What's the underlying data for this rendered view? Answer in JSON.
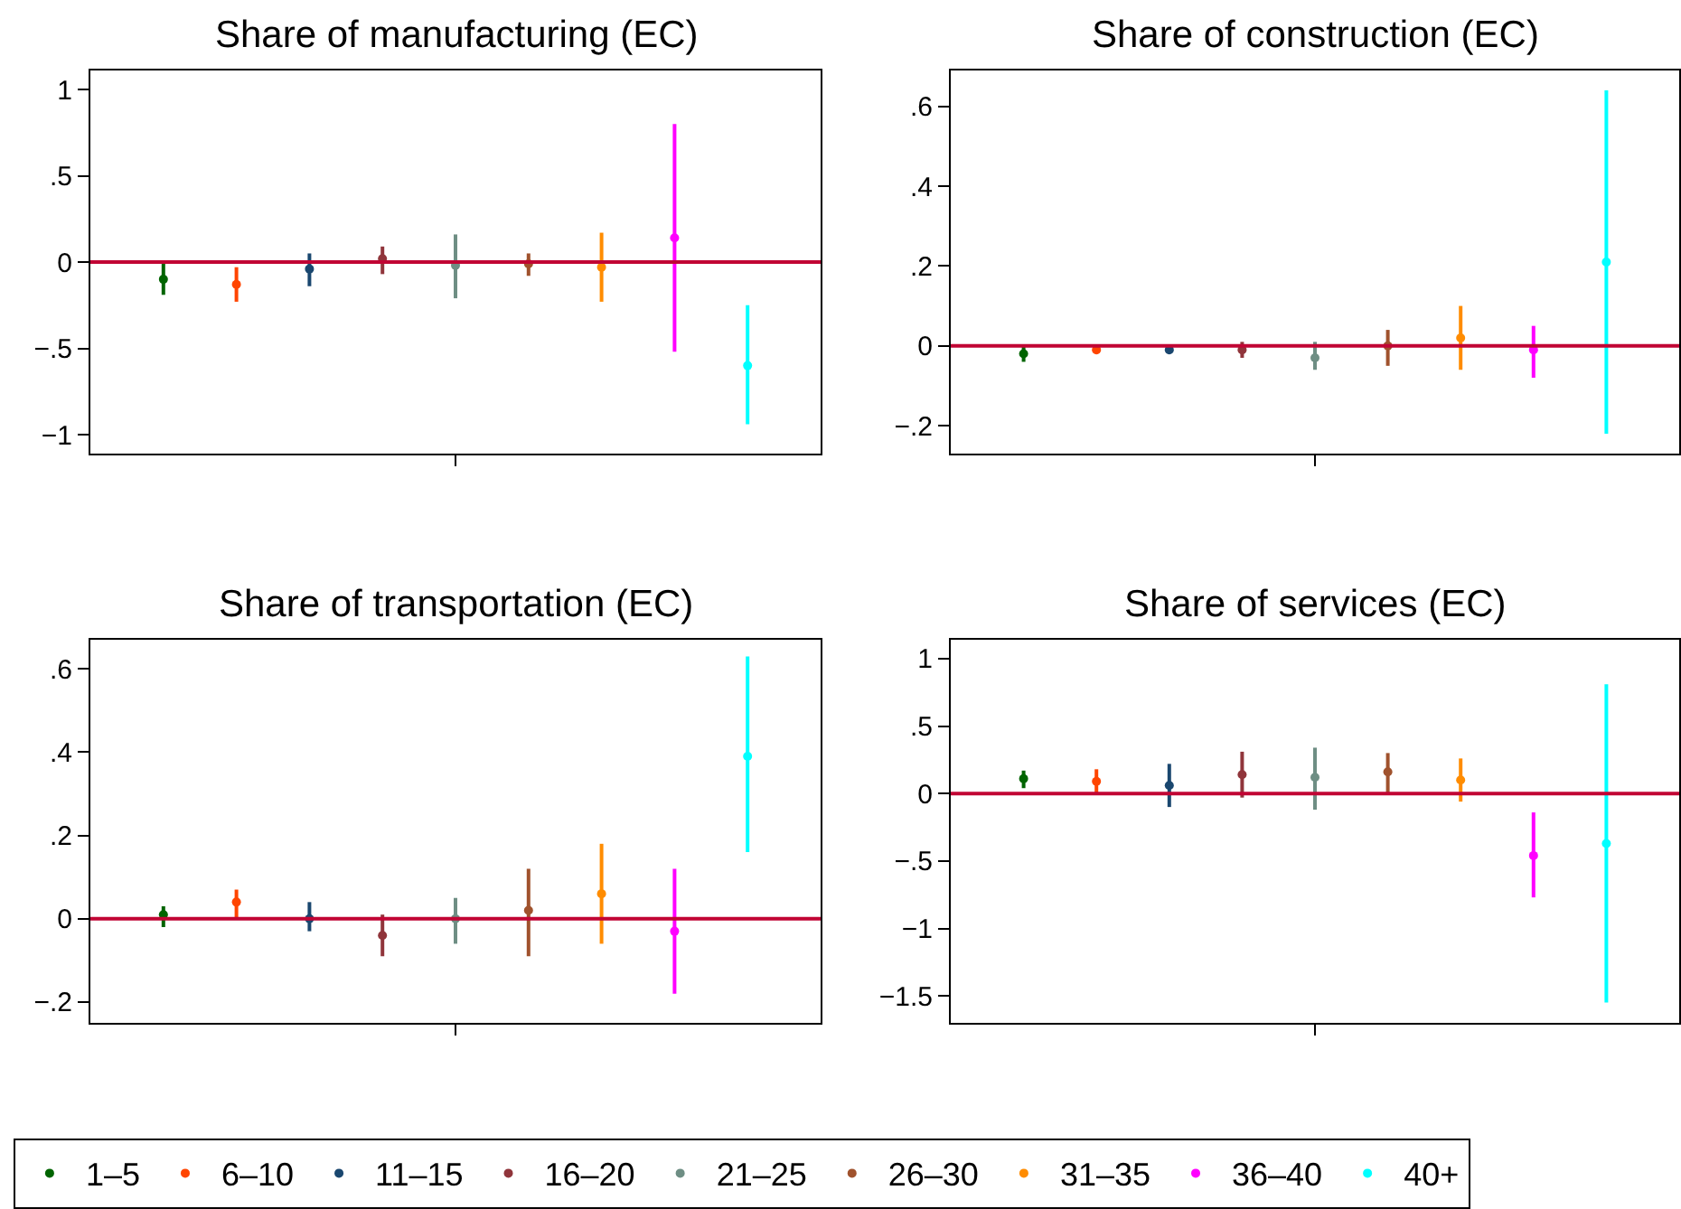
{
  "chart_data": [
    {
      "type": "scatter",
      "title": "Share of manufacturing (EC)",
      "marker": "circle",
      "legend": "bottom",
      "categories": [
        null,
        null,
        null,
        null,
        null,
        null,
        null,
        null,
        null
      ],
      "ylim": [
        -1.11,
        1.11
      ],
      "yticks": [
        {
          "value": -1,
          "label": "−1"
        },
        {
          "value": -0.5,
          "label": "−.5"
        },
        0,
        {
          "value": 0.5,
          "label": ".5"
        },
        1
      ],
      "ref_lines": [
        {
          "axis": "y",
          "value": 0,
          "color": "#c10534"
        }
      ],
      "series": [
        {
          "name": "1–5",
          "color": "#006400",
          "values": [
            -0.1,
            null,
            null,
            null,
            null,
            null,
            null,
            null,
            null
          ],
          "errors": [
            [
              -0.19,
              0.0
            ],
            null,
            null,
            null,
            null,
            null,
            null,
            null,
            null
          ]
        },
        {
          "name": "6–10",
          "color": "#ff4500",
          "values": [
            null,
            -0.13,
            null,
            null,
            null,
            null,
            null,
            null,
            null
          ],
          "errors": [
            null,
            [
              -0.23,
              -0.03
            ],
            null,
            null,
            null,
            null,
            null,
            null,
            null
          ]
        },
        {
          "name": "11–15",
          "color": "#1a476f",
          "values": [
            null,
            null,
            -0.04,
            null,
            null,
            null,
            null,
            null,
            null
          ],
          "errors": [
            null,
            null,
            [
              -0.14,
              0.05
            ],
            null,
            null,
            null,
            null,
            null,
            null
          ]
        },
        {
          "name": "16–20",
          "color": "#90353b",
          "values": [
            null,
            null,
            null,
            0.02,
            null,
            null,
            null,
            null,
            null
          ],
          "errors": [
            null,
            null,
            null,
            [
              -0.07,
              0.09
            ],
            null,
            null,
            null,
            null,
            null
          ]
        },
        {
          "name": "21–25",
          "color": "#6e8e84",
          "values": [
            null,
            null,
            null,
            null,
            -0.02,
            null,
            null,
            null,
            null
          ],
          "errors": [
            null,
            null,
            null,
            null,
            [
              -0.21,
              0.16
            ],
            null,
            null,
            null,
            null
          ]
        },
        {
          "name": "26–30",
          "color": "#a0522d",
          "values": [
            null,
            null,
            null,
            null,
            null,
            -0.01,
            null,
            null,
            null
          ],
          "errors": [
            null,
            null,
            null,
            null,
            null,
            [
              -0.08,
              0.05
            ],
            null,
            null,
            null
          ]
        },
        {
          "name": "31–35",
          "color": "#ff8c00",
          "values": [
            null,
            null,
            null,
            null,
            null,
            null,
            -0.03,
            null,
            null
          ],
          "errors": [
            null,
            null,
            null,
            null,
            null,
            null,
            [
              -0.23,
              0.17
            ],
            null,
            null
          ]
        },
        {
          "name": "36–40",
          "color": "#ff00ff",
          "values": [
            null,
            null,
            null,
            null,
            null,
            null,
            null,
            0.14,
            null
          ],
          "errors": [
            null,
            null,
            null,
            null,
            null,
            null,
            null,
            [
              -0.52,
              0.8
            ],
            null
          ]
        },
        {
          "name": "40+",
          "color": "#00ffff",
          "values": [
            null,
            null,
            null,
            null,
            null,
            null,
            null,
            null,
            -0.6
          ],
          "errors": [
            null,
            null,
            null,
            null,
            null,
            null,
            null,
            null,
            [
              -0.94,
              -0.25
            ]
          ]
        }
      ]
    },
    {
      "type": "scatter",
      "title": "Share of construction (EC)",
      "marker": "circle",
      "categories": [
        null,
        null,
        null,
        null,
        null,
        null,
        null,
        null,
        null
      ],
      "ylim": [
        -0.27,
        0.69
      ],
      "yticks": [
        {
          "value": -0.2,
          "label": "−.2"
        },
        0,
        {
          "value": 0.2,
          "label": ".2"
        },
        {
          "value": 0.4,
          "label": ".4"
        },
        {
          "value": 0.6,
          "label": ".6"
        }
      ],
      "ref_lines": [
        {
          "axis": "y",
          "value": 0,
          "color": "#c10534"
        }
      ],
      "series": [
        {
          "color": "#006400",
          "values": [
            -0.02,
            null,
            null,
            null,
            null,
            null,
            null,
            null,
            null
          ],
          "errors": [
            [
              -0.04,
              0.0
            ],
            null,
            null,
            null,
            null,
            null,
            null,
            null,
            null
          ]
        },
        {
          "color": "#ff4500",
          "values": [
            null,
            -0.01,
            null,
            null,
            null,
            null,
            null,
            null,
            null
          ]
        },
        {
          "color": "#1a476f",
          "values": [
            null,
            null,
            -0.01,
            null,
            null,
            null,
            null,
            null,
            null
          ]
        },
        {
          "color": "#90353b",
          "values": [
            null,
            null,
            null,
            -0.01,
            null,
            null,
            null,
            null,
            null
          ],
          "errors": [
            null,
            null,
            null,
            [
              -0.03,
              0.01
            ],
            null,
            null,
            null,
            null,
            null
          ]
        },
        {
          "color": "#6e8e84",
          "values": [
            null,
            null,
            null,
            null,
            -0.03,
            null,
            null,
            null,
            null
          ],
          "errors": [
            null,
            null,
            null,
            null,
            [
              -0.06,
              0.01
            ],
            null,
            null,
            null,
            null
          ]
        },
        {
          "color": "#a0522d",
          "values": [
            null,
            null,
            null,
            null,
            null,
            0.0,
            null,
            null,
            null
          ],
          "errors": [
            null,
            null,
            null,
            null,
            null,
            [
              -0.05,
              0.04
            ],
            null,
            null,
            null
          ]
        },
        {
          "color": "#ff8c00",
          "values": [
            null,
            null,
            null,
            null,
            null,
            null,
            0.02,
            null,
            null
          ],
          "errors": [
            null,
            null,
            null,
            null,
            null,
            null,
            [
              -0.06,
              0.1
            ],
            null,
            null
          ]
        },
        {
          "color": "#ff00ff",
          "values": [
            null,
            null,
            null,
            null,
            null,
            null,
            null,
            -0.01,
            null
          ],
          "errors": [
            null,
            null,
            null,
            null,
            null,
            null,
            null,
            [
              -0.08,
              0.05
            ],
            null
          ]
        },
        {
          "color": "#00ffff",
          "values": [
            null,
            null,
            null,
            null,
            null,
            null,
            null,
            null,
            0.21
          ],
          "errors": [
            null,
            null,
            null,
            null,
            null,
            null,
            null,
            null,
            [
              -0.22,
              0.64
            ]
          ]
        }
      ]
    },
    {
      "type": "scatter",
      "title": "Share of transportation (EC)",
      "marker": "circle",
      "categories": [
        null,
        null,
        null,
        null,
        null,
        null,
        null,
        null,
        null
      ],
      "ylim": [
        -0.25,
        0.67
      ],
      "yticks": [
        {
          "value": -0.2,
          "label": "−.2"
        },
        0,
        {
          "value": 0.2,
          "label": ".2"
        },
        {
          "value": 0.4,
          "label": ".4"
        },
        {
          "value": 0.6,
          "label": ".6"
        }
      ],
      "ref_lines": [
        {
          "axis": "y",
          "value": 0,
          "color": "#c10534"
        }
      ],
      "series": [
        {
          "color": "#006400",
          "values": [
            0.01,
            null,
            null,
            null,
            null,
            null,
            null,
            null,
            null
          ],
          "errors": [
            [
              -0.02,
              0.03
            ],
            null,
            null,
            null,
            null,
            null,
            null,
            null,
            null
          ]
        },
        {
          "color": "#ff4500",
          "values": [
            null,
            0.04,
            null,
            null,
            null,
            null,
            null,
            null,
            null
          ],
          "errors": [
            null,
            [
              0.0,
              0.07
            ],
            null,
            null,
            null,
            null,
            null,
            null,
            null
          ]
        },
        {
          "color": "#1a476f",
          "values": [
            null,
            null,
            0.0,
            null,
            null,
            null,
            null,
            null,
            null
          ],
          "errors": [
            null,
            null,
            [
              -0.03,
              0.04
            ],
            null,
            null,
            null,
            null,
            null,
            null
          ]
        },
        {
          "color": "#90353b",
          "values": [
            null,
            null,
            null,
            -0.04,
            null,
            null,
            null,
            null,
            null
          ],
          "errors": [
            null,
            null,
            null,
            [
              -0.09,
              0.01
            ],
            null,
            null,
            null,
            null,
            null
          ]
        },
        {
          "color": "#6e8e84",
          "values": [
            null,
            null,
            null,
            null,
            0.0,
            null,
            null,
            null,
            null
          ],
          "errors": [
            null,
            null,
            null,
            null,
            [
              -0.06,
              0.05
            ],
            null,
            null,
            null,
            null
          ]
        },
        {
          "color": "#a0522d",
          "values": [
            null,
            null,
            null,
            null,
            null,
            0.02,
            null,
            null,
            null
          ],
          "errors": [
            null,
            null,
            null,
            null,
            null,
            [
              -0.09,
              0.12
            ],
            null,
            null,
            null
          ]
        },
        {
          "color": "#ff8c00",
          "values": [
            null,
            null,
            null,
            null,
            null,
            null,
            0.06,
            null,
            null
          ],
          "errors": [
            null,
            null,
            null,
            null,
            null,
            null,
            [
              -0.06,
              0.18
            ],
            null,
            null
          ]
        },
        {
          "color": "#ff00ff",
          "values": [
            null,
            null,
            null,
            null,
            null,
            null,
            null,
            -0.03,
            null
          ],
          "errors": [
            null,
            null,
            null,
            null,
            null,
            null,
            null,
            [
              -0.18,
              0.12
            ],
            null
          ]
        },
        {
          "color": "#00ffff",
          "values": [
            null,
            null,
            null,
            null,
            null,
            null,
            null,
            null,
            0.39
          ],
          "errors": [
            null,
            null,
            null,
            null,
            null,
            null,
            null,
            null,
            [
              0.16,
              0.63
            ]
          ]
        }
      ]
    },
    {
      "type": "scatter",
      "title": "Share of services (EC)",
      "marker": "circle",
      "categories": [
        null,
        null,
        null,
        null,
        null,
        null,
        null,
        null,
        null
      ],
      "ylim": [
        -1.7,
        1.14
      ],
      "yticks": [
        {
          "value": -1.5,
          "label": "−1.5"
        },
        {
          "value": -1,
          "label": "−1"
        },
        {
          "value": -0.5,
          "label": "−.5"
        },
        0,
        {
          "value": 0.5,
          "label": ".5"
        },
        1
      ],
      "ref_lines": [
        {
          "axis": "y",
          "value": 0,
          "color": "#c10534"
        }
      ],
      "series": [
        {
          "color": "#006400",
          "values": [
            0.11,
            null,
            null,
            null,
            null,
            null,
            null,
            null,
            null
          ],
          "errors": [
            [
              0.04,
              0.17
            ],
            null,
            null,
            null,
            null,
            null,
            null,
            null,
            null
          ]
        },
        {
          "color": "#ff4500",
          "values": [
            null,
            0.09,
            null,
            null,
            null,
            null,
            null,
            null,
            null
          ],
          "errors": [
            null,
            [
              -0.01,
              0.18
            ],
            null,
            null,
            null,
            null,
            null,
            null,
            null
          ]
        },
        {
          "color": "#1a476f",
          "values": [
            null,
            null,
            0.06,
            null,
            null,
            null,
            null,
            null,
            null
          ],
          "errors": [
            null,
            null,
            [
              -0.1,
              0.22
            ],
            null,
            null,
            null,
            null,
            null,
            null
          ]
        },
        {
          "color": "#90353b",
          "values": [
            null,
            null,
            null,
            0.14,
            null,
            null,
            null,
            null,
            null
          ],
          "errors": [
            null,
            null,
            null,
            [
              -0.03,
              0.31
            ],
            null,
            null,
            null,
            null,
            null
          ]
        },
        {
          "color": "#6e8e84",
          "values": [
            null,
            null,
            null,
            null,
            0.12,
            null,
            null,
            null,
            null
          ],
          "errors": [
            null,
            null,
            null,
            null,
            [
              -0.12,
              0.34
            ],
            null,
            null,
            null,
            null
          ]
        },
        {
          "color": "#a0522d",
          "values": [
            null,
            null,
            null,
            null,
            null,
            0.16,
            null,
            null,
            null
          ],
          "errors": [
            null,
            null,
            null,
            null,
            null,
            [
              0.0,
              0.3
            ],
            null,
            null,
            null
          ]
        },
        {
          "color": "#ff8c00",
          "values": [
            null,
            null,
            null,
            null,
            null,
            null,
            0.1,
            null,
            null
          ],
          "errors": [
            null,
            null,
            null,
            null,
            null,
            null,
            [
              -0.06,
              0.26
            ],
            null,
            null
          ]
        },
        {
          "color": "#ff00ff",
          "values": [
            null,
            null,
            null,
            null,
            null,
            null,
            null,
            -0.46,
            null
          ],
          "errors": [
            null,
            null,
            null,
            null,
            null,
            null,
            null,
            [
              -0.77,
              -0.14
            ],
            null
          ]
        },
        {
          "color": "#00ffff",
          "values": [
            null,
            null,
            null,
            null,
            null,
            null,
            null,
            null,
            -0.37
          ],
          "errors": [
            null,
            null,
            null,
            null,
            null,
            null,
            null,
            null,
            [
              -1.55,
              0.81
            ]
          ]
        }
      ]
    }
  ]
}
